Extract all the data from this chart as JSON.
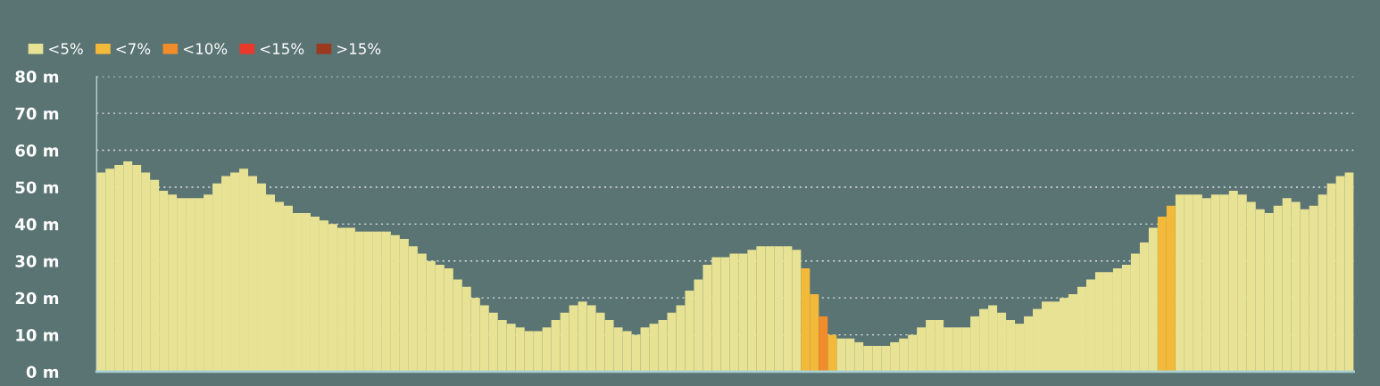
{
  "chart_data": {
    "type": "bar",
    "categories": [
      null,
      null,
      null,
      null,
      null,
      null,
      null,
      null,
      null,
      null,
      null,
      null,
      null,
      null,
      null,
      null,
      null,
      null,
      null,
      null,
      null,
      null,
      null,
      null,
      null,
      null,
      null,
      null,
      null,
      null,
      null,
      null,
      null,
      null,
      null,
      null,
      null,
      null,
      null,
      null,
      null,
      null,
      null,
      null,
      null,
      null,
      null,
      null,
      null,
      null,
      null,
      null,
      null,
      null,
      null,
      null,
      null,
      null,
      null,
      null,
      null,
      null,
      null,
      null,
      null,
      null,
      null,
      null,
      null,
      null,
      null,
      null,
      null,
      null,
      null,
      null,
      null,
      null,
      null,
      null,
      null,
      null,
      null,
      null,
      null,
      null,
      null,
      null,
      null,
      null,
      null,
      null,
      null,
      null,
      null,
      null,
      null,
      null,
      null,
      null,
      null,
      null,
      null,
      null,
      null,
      null,
      null,
      null,
      null,
      null,
      null,
      null,
      null,
      null,
      null,
      null,
      null,
      null,
      null,
      null,
      null,
      null,
      null,
      null,
      null,
      null,
      null,
      null,
      null,
      null,
      null,
      null,
      null,
      null,
      null,
      null,
      null,
      null,
      null,
      null,
      null
    ],
    "series": [
      {
        "name": "<5%",
        "color": "#e8e394",
        "values": [
          54,
          55,
          56,
          57,
          56,
          54,
          52,
          49,
          48,
          47,
          47,
          47,
          48,
          51,
          53,
          54,
          55,
          53,
          51,
          48,
          46,
          45,
          43,
          43,
          42,
          41,
          40,
          39,
          39,
          38,
          38,
          38,
          38,
          37,
          36,
          34,
          32,
          30,
          29,
          28,
          25,
          23,
          20,
          18,
          16,
          14,
          13,
          12,
          11,
          11,
          12,
          14,
          16,
          18,
          19,
          18,
          16,
          14,
          12,
          11,
          10,
          12,
          13,
          14,
          16,
          18,
          22,
          25,
          29,
          31,
          31,
          32,
          32,
          33,
          34,
          34,
          34,
          34,
          33,
          null,
          null,
          null,
          null,
          9,
          9,
          8,
          7,
          7,
          7,
          8,
          9,
          10,
          12,
          14,
          14,
          12,
          12,
          12,
          15,
          17,
          18,
          16,
          14,
          13,
          15,
          17,
          19,
          19,
          20,
          21,
          23,
          25,
          27,
          27,
          28,
          29,
          32,
          35,
          39,
          null,
          null,
          48,
          48,
          48,
          47,
          48,
          48,
          49,
          48,
          46,
          44,
          43,
          45,
          47,
          46,
          44,
          45,
          48,
          51,
          53,
          54
        ]
      },
      {
        "name": "<7%",
        "color": "#f2b93a",
        "values": [
          null,
          null,
          null,
          null,
          null,
          null,
          null,
          null,
          null,
          null,
          null,
          null,
          null,
          null,
          null,
          null,
          null,
          null,
          null,
          null,
          null,
          null,
          null,
          null,
          null,
          null,
          null,
          null,
          null,
          null,
          null,
          null,
          null,
          null,
          null,
          null,
          null,
          null,
          null,
          null,
          null,
          null,
          null,
          null,
          null,
          null,
          null,
          null,
          null,
          null,
          null,
          null,
          null,
          null,
          null,
          null,
          null,
          null,
          null,
          null,
          null,
          null,
          null,
          null,
          null,
          null,
          null,
          null,
          null,
          null,
          null,
          null,
          null,
          null,
          null,
          null,
          null,
          null,
          null,
          28,
          21,
          null,
          10,
          null,
          null,
          null,
          null,
          null,
          null,
          null,
          null,
          null,
          null,
          null,
          null,
          null,
          null,
          null,
          null,
          null,
          null,
          null,
          null,
          null,
          null,
          null,
          null,
          null,
          null,
          null,
          null,
          null,
          null,
          null,
          null,
          null,
          null,
          null,
          null,
          42,
          45,
          null,
          null,
          null,
          null,
          null,
          null,
          null,
          null,
          null,
          null,
          null,
          null,
          null,
          null,
          null,
          null,
          null,
          null,
          null,
          null
        ]
      },
      {
        "name": "<10%",
        "color": "#f08c2a",
        "values": [
          null,
          null,
          null,
          null,
          null,
          null,
          null,
          null,
          null,
          null,
          null,
          null,
          null,
          null,
          null,
          null,
          null,
          null,
          null,
          null,
          null,
          null,
          null,
          null,
          null,
          null,
          null,
          null,
          null,
          null,
          null,
          null,
          null,
          null,
          null,
          null,
          null,
          null,
          null,
          null,
          null,
          null,
          null,
          null,
          null,
          null,
          null,
          null,
          null,
          null,
          null,
          null,
          null,
          null,
          null,
          null,
          null,
          null,
          null,
          null,
          null,
          null,
          null,
          null,
          null,
          null,
          null,
          null,
          null,
          null,
          null,
          null,
          null,
          null,
          null,
          null,
          null,
          null,
          null,
          null,
          null,
          15,
          null,
          null,
          null,
          null,
          null,
          null,
          null,
          null,
          null,
          null,
          null,
          null,
          null,
          null,
          null,
          null,
          null,
          null,
          null,
          null,
          null,
          null,
          null,
          null,
          null,
          null,
          null,
          null,
          null,
          null,
          null,
          null,
          null,
          null,
          null,
          null,
          null,
          null,
          null,
          null,
          null,
          null,
          null,
          null,
          null,
          null,
          null,
          null,
          null,
          null,
          null,
          null,
          null,
          null,
          null,
          null,
          null,
          null,
          null
        ]
      },
      {
        "name": "<15%",
        "color": "#e8392a",
        "values": [
          null,
          null,
          null,
          null,
          null,
          null,
          null,
          null,
          null,
          null,
          null,
          null,
          null,
          null,
          null,
          null,
          null,
          null,
          null,
          null,
          null,
          null,
          null,
          null,
          null,
          null,
          null,
          null,
          null,
          null,
          null,
          null,
          null,
          null,
          null,
          null,
          null,
          null,
          null,
          null,
          null,
          null,
          null,
          null,
          null,
          null,
          null,
          null,
          null,
          null,
          null,
          null,
          null,
          null,
          null,
          null,
          null,
          null,
          null,
          null,
          null,
          null,
          null,
          null,
          null,
          null,
          null,
          null,
          null,
          null,
          null,
          null,
          null,
          null,
          null,
          null,
          null,
          null,
          null,
          null,
          null,
          null,
          null,
          null,
          null,
          null,
          null,
          null,
          null,
          null,
          null,
          null,
          null,
          null,
          null,
          null,
          null,
          null,
          null,
          null,
          null,
          null,
          null,
          null,
          null,
          null,
          null,
          null,
          null,
          null,
          null,
          null,
          null,
          null,
          null,
          null,
          null,
          null,
          null,
          null,
          null,
          null,
          null,
          null,
          null,
          null,
          null,
          null,
          null,
          null,
          null,
          null,
          null,
          null,
          null,
          null,
          null,
          null,
          null,
          null,
          null
        ]
      },
      {
        "name": ">15%",
        "color": "#9c3a20",
        "values": [
          null,
          null,
          null,
          null,
          null,
          null,
          null,
          null,
          null,
          null,
          null,
          null,
          null,
          null,
          null,
          null,
          null,
          null,
          null,
          null,
          null,
          null,
          null,
          null,
          null,
          null,
          null,
          null,
          null,
          null,
          null,
          null,
          null,
          null,
          null,
          null,
          null,
          null,
          null,
          null,
          null,
          null,
          null,
          null,
          null,
          null,
          null,
          null,
          null,
          null,
          null,
          null,
          null,
          null,
          null,
          null,
          null,
          null,
          null,
          null,
          null,
          null,
          null,
          null,
          null,
          null,
          null,
          null,
          null,
          null,
          null,
          null,
          null,
          null,
          null,
          null,
          null,
          null,
          null,
          null,
          null,
          null,
          null,
          null,
          null,
          null,
          null,
          null,
          null,
          null,
          null,
          null,
          null,
          null,
          null,
          null,
          null,
          null,
          null,
          null,
          null,
          null,
          null,
          null,
          null,
          null,
          null,
          null,
          null,
          null,
          null,
          null,
          null,
          null,
          null,
          null,
          null,
          null,
          null,
          null,
          null,
          null,
          null,
          null,
          null,
          null,
          null,
          null,
          null,
          null,
          null,
          null,
          null,
          null,
          null,
          null,
          null,
          null,
          null,
          null,
          null
        ]
      }
    ],
    "ylim": [
      0,
      80
    ],
    "yticks": [
      {
        "value": 0,
        "label": "0 m"
      },
      {
        "value": 10,
        "label": "10 m"
      },
      {
        "value": 20,
        "label": "20 m"
      },
      {
        "value": 30,
        "label": "30 m"
      },
      {
        "value": 40,
        "label": "40 m"
      },
      {
        "value": 50,
        "label": "50 m"
      },
      {
        "value": 60,
        "label": "60 m"
      },
      {
        "value": 70,
        "label": "70 m"
      },
      {
        "value": 80,
        "label": "80 m"
      }
    ],
    "grid": "y",
    "legend": "top left"
  }
}
